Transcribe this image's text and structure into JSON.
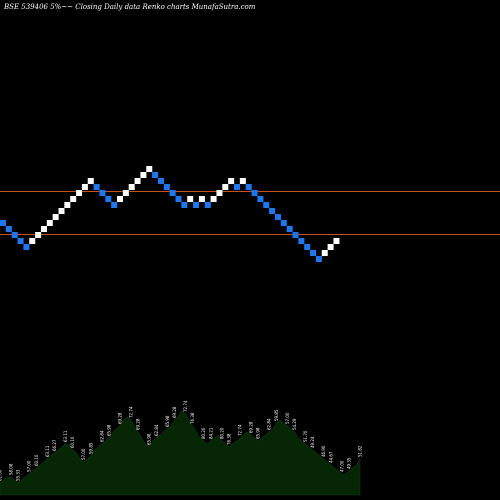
{
  "chart_data": {
    "type": "renko",
    "title": "BSE 539406  5%~~  Closing Daily data  Renko  charts MunafaSutra.com",
    "colors": {
      "up": "#ffffff",
      "down": "#1f77f0",
      "reference_line": "#c8501e",
      "volume_fill": "#062606"
    },
    "reference_levels": [
      "upper",
      "lower"
    ],
    "bricks": [
      {
        "dir": "down",
        "level": 0
      },
      {
        "dir": "down",
        "level": -1
      },
      {
        "dir": "down",
        "level": -2
      },
      {
        "dir": "down",
        "level": -3
      },
      {
        "dir": "down",
        "level": -4
      },
      {
        "dir": "up",
        "level": -3
      },
      {
        "dir": "up",
        "level": -2
      },
      {
        "dir": "up",
        "level": -1
      },
      {
        "dir": "up",
        "level": 0
      },
      {
        "dir": "up",
        "level": 1
      },
      {
        "dir": "up",
        "level": 2
      },
      {
        "dir": "up",
        "level": 3
      },
      {
        "dir": "up",
        "level": 4
      },
      {
        "dir": "up",
        "level": 5
      },
      {
        "dir": "up",
        "level": 6
      },
      {
        "dir": "up",
        "level": 7
      },
      {
        "dir": "down",
        "level": 6
      },
      {
        "dir": "down",
        "level": 5
      },
      {
        "dir": "down",
        "level": 4
      },
      {
        "dir": "down",
        "level": 3
      },
      {
        "dir": "up",
        "level": 4
      },
      {
        "dir": "up",
        "level": 5
      },
      {
        "dir": "up",
        "level": 6
      },
      {
        "dir": "up",
        "level": 7
      },
      {
        "dir": "up",
        "level": 8
      },
      {
        "dir": "up",
        "level": 9
      },
      {
        "dir": "down",
        "level": 8
      },
      {
        "dir": "down",
        "level": 7
      },
      {
        "dir": "down",
        "level": 6
      },
      {
        "dir": "down",
        "level": 5
      },
      {
        "dir": "down",
        "level": 4
      },
      {
        "dir": "down",
        "level": 3
      },
      {
        "dir": "up",
        "level": 4
      },
      {
        "dir": "down",
        "level": 3
      },
      {
        "dir": "up",
        "level": 4
      },
      {
        "dir": "down",
        "level": 3
      },
      {
        "dir": "up",
        "level": 4
      },
      {
        "dir": "up",
        "level": 5
      },
      {
        "dir": "up",
        "level": 6
      },
      {
        "dir": "up",
        "level": 7
      },
      {
        "dir": "down",
        "level": 6
      },
      {
        "dir": "up",
        "level": 7
      },
      {
        "dir": "down",
        "level": 6
      },
      {
        "dir": "down",
        "level": 5
      },
      {
        "dir": "down",
        "level": 4
      },
      {
        "dir": "down",
        "level": 3
      },
      {
        "dir": "down",
        "level": 2
      },
      {
        "dir": "down",
        "level": 1
      },
      {
        "dir": "down",
        "level": 0
      },
      {
        "dir": "down",
        "level": -1
      },
      {
        "dir": "down",
        "level": -2
      },
      {
        "dir": "down",
        "level": -3
      },
      {
        "dir": "down",
        "level": -4
      },
      {
        "dir": "down",
        "level": -5
      },
      {
        "dir": "down",
        "level": -6
      },
      {
        "dir": "up",
        "level": -5
      },
      {
        "dir": "up",
        "level": -4
      },
      {
        "dir": "up",
        "level": -3
      }
    ],
    "volume_panel": {
      "values": [
        14,
        15,
        16,
        16,
        15,
        14,
        15,
        16,
        17,
        18,
        19,
        20,
        21,
        22,
        23,
        24,
        25,
        26,
        27,
        27,
        25,
        24,
        22,
        21,
        22,
        23,
        25,
        26,
        27,
        28,
        29,
        31,
        32,
        33,
        35,
        36,
        35,
        33,
        31,
        29,
        27,
        26,
        28,
        29,
        30,
        31,
        32,
        33,
        35,
        36,
        38,
        37,
        35,
        33,
        31,
        29,
        28,
        27,
        28,
        29,
        30,
        28,
        27,
        26,
        27,
        28,
        29,
        30,
        31,
        30,
        29,
        28,
        29,
        30,
        31,
        32,
        34,
        35,
        34,
        33,
        32,
        31,
        29,
        28,
        27,
        26,
        25,
        24,
        23,
        22,
        21,
        20,
        19,
        18,
        17,
        17,
        18,
        19,
        20,
        22
      ],
      "labels": [
        "61.00",
        "58.08",
        "55.33",
        "57.00",
        "60.10",
        "63.11",
        "66.27",
        "63.11",
        "60.10",
        "57.00",
        "59.85",
        "62.84",
        "65.98",
        "69.28",
        "72.74",
        "69.28",
        "65.98",
        "62.84",
        "65.98",
        "69.28",
        "72.74",
        "76.38",
        "80.20",
        "84.21",
        "80.20",
        "76.38",
        "72.74",
        "69.28",
        "65.98",
        "62.84",
        "59.85",
        "57.00",
        "54.29",
        "51.70",
        "49.24",
        "46.90",
        "44.67",
        "47.00",
        "49.35",
        "51.82"
      ]
    }
  }
}
